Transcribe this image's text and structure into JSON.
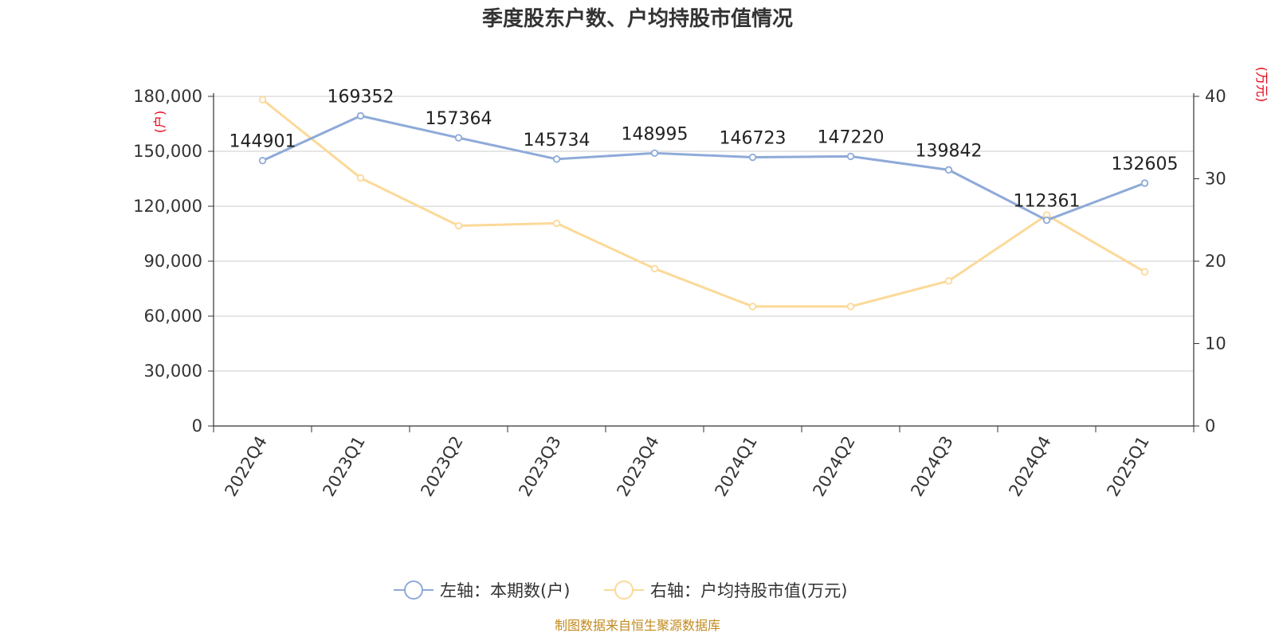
{
  "chart_data": {
    "type": "line",
    "title": "季度股东户数、户均持股市值情况",
    "categories": [
      "2022Q4",
      "2023Q1",
      "2023Q2",
      "2023Q3",
      "2023Q4",
      "2024Q1",
      "2024Q2",
      "2024Q3",
      "2024Q4",
      "2025Q1"
    ],
    "series": [
      {
        "name": "左轴：本期数(户)",
        "axis": "left",
        "color": "#8eaad8",
        "values": [
          144901,
          169352,
          157364,
          145734,
          148995,
          146723,
          147220,
          139842,
          112361,
          132605
        ],
        "labels": [
          "144901",
          "169352",
          "157364",
          "145734",
          "148995",
          "146723",
          "147220",
          "139842",
          "112361",
          "132605"
        ]
      },
      {
        "name": "右轴：户均持股市值(万元)",
        "axis": "right",
        "color": "#fcd999",
        "values": [
          39.6,
          30.1,
          24.3,
          24.6,
          19.1,
          14.5,
          14.5,
          17.6,
          25.6,
          18.7
        ]
      }
    ],
    "left_axis": {
      "unit": "(户)",
      "ylim": [
        0,
        180000
      ],
      "ticks": [
        "0",
        "30,000",
        "60,000",
        "90,000",
        "120,000",
        "150,000",
        "180,000"
      ]
    },
    "right_axis": {
      "unit": "(万元)",
      "ylim": [
        0,
        40
      ],
      "ticks": [
        "0",
        "10",
        "20",
        "30",
        "40"
      ]
    },
    "grid": true,
    "legend_position": "bottom-center"
  },
  "footer": {
    "source": "制图数据来自恒生聚源数据库"
  }
}
